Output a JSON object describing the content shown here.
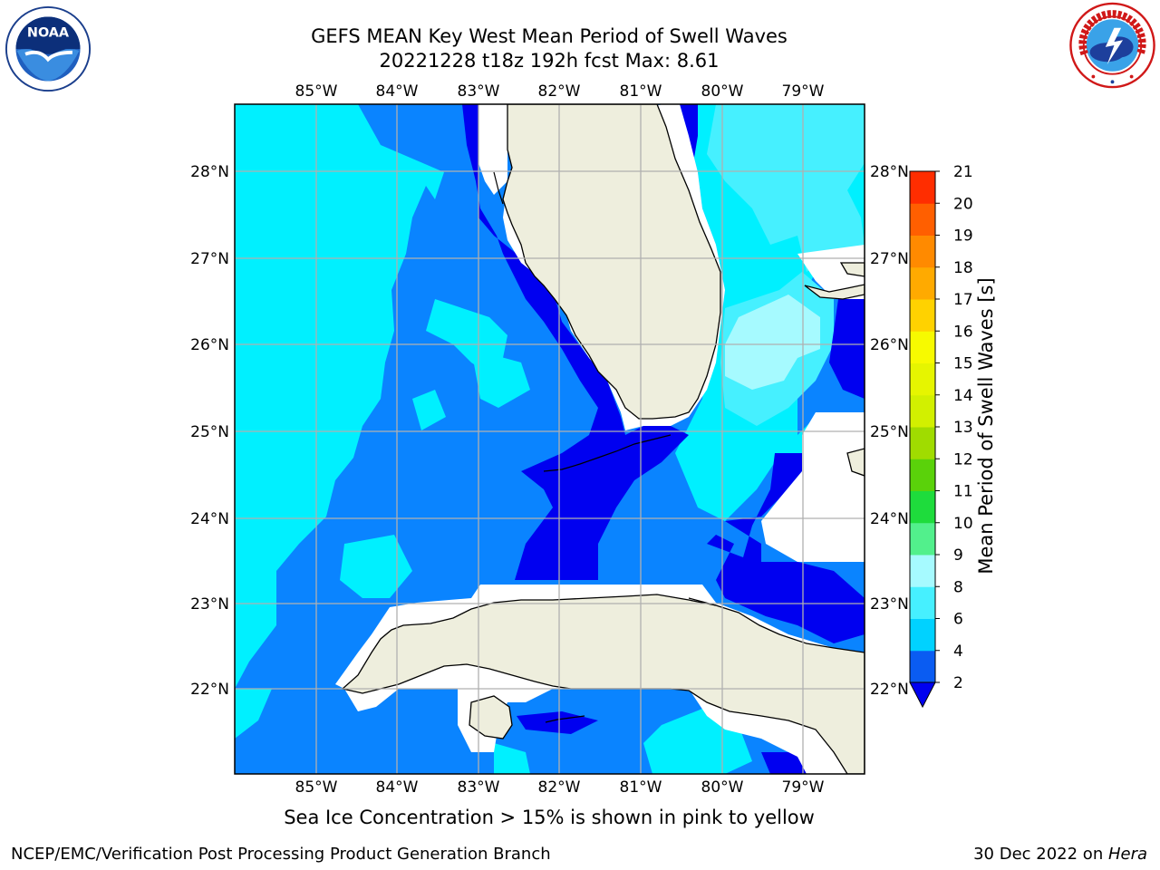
{
  "title": {
    "line1": "GEFS MEAN Key West Mean Period of Swell Waves",
    "line2": "20221228 t18z 192h fcst   Max: 8.61"
  },
  "logos": {
    "left": {
      "name": "NOAA",
      "icon": "noaa-logo",
      "text": "NOAA"
    },
    "right": {
      "name": "NATIONAL WEATHER SERVICE",
      "icon": "nws-logo"
    }
  },
  "map": {
    "longitude_labels": [
      "85°W",
      "84°W",
      "83°W",
      "82°W",
      "81°W",
      "80°W",
      "79°W"
    ],
    "latitude_labels": [
      "28°N",
      "27°N",
      "26°N",
      "25°N",
      "24°N",
      "23°N",
      "22°N"
    ],
    "extent": {
      "lon_min": -86,
      "lon_max": -78.4,
      "lat_min": 21.05,
      "lat_max": 28.75
    },
    "land_color": "#eeeedd",
    "gridline_color": "#b0b0b0"
  },
  "colorbar": {
    "label": "Mean Period of Swell Waves [s]",
    "ticks": [
      "2",
      "4",
      "6",
      "8",
      "9",
      "10",
      "11",
      "12",
      "13",
      "14",
      "15",
      "16",
      "17",
      "18",
      "19",
      "20",
      "21"
    ],
    "colors": [
      "#0a5cf2",
      "#00d2ff",
      "#46f0ff",
      "#a6faff",
      "#52f08c",
      "#1edc3c",
      "#5ad20a",
      "#a0dc00",
      "#d2f000",
      "#e6f500",
      "#f7fa00",
      "#ffd200",
      "#ffaa00",
      "#ff8a00",
      "#ff5f00",
      "#ff2d00"
    ],
    "under_color": "#0000f0"
  },
  "footer": {
    "note": "Sea Ice Concentration > 15% is shown in pink to yellow",
    "branch": "NCEP/EMC/Verification Post Processing Product Generation Branch",
    "date": "30 Dec 2022 on ",
    "host": "Hera"
  }
}
